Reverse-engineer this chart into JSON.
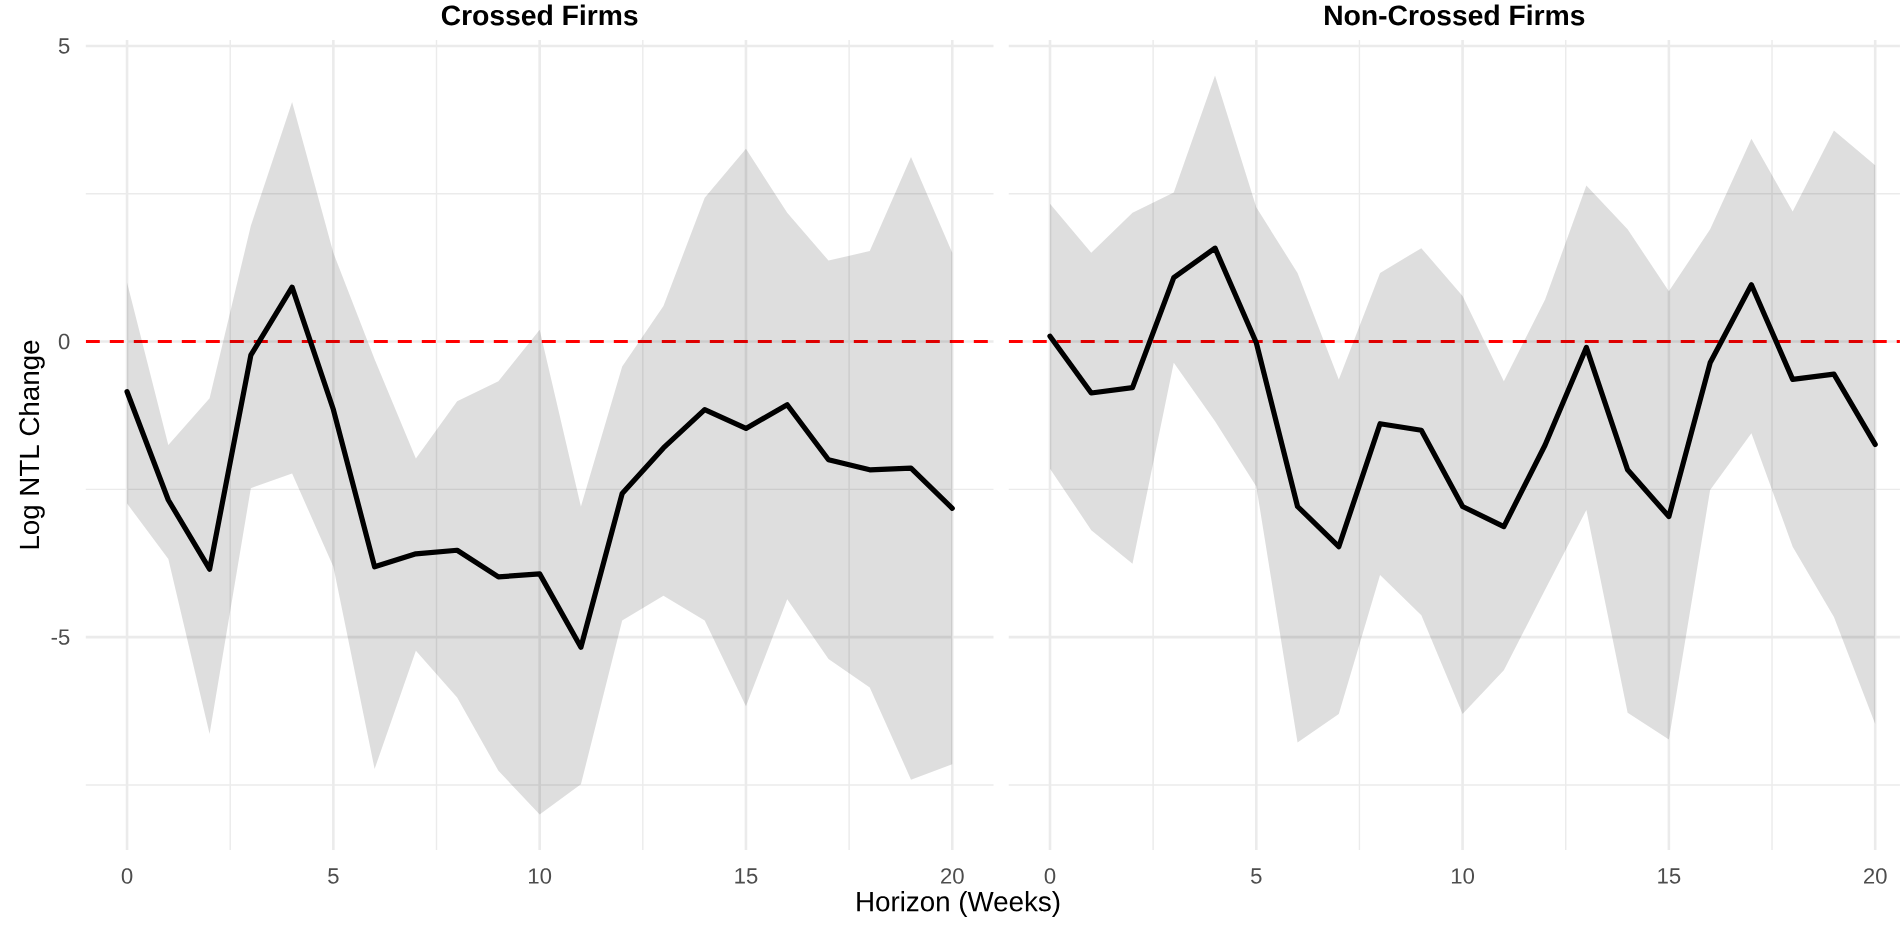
{
  "chart_data": [
    {
      "type": "line",
      "title": "Crossed Firms",
      "xlabel": "Horizon (Weeks)",
      "ylabel": "Log NTL Change",
      "x": [
        0,
        1,
        2,
        3,
        4,
        5,
        6,
        7,
        8,
        9,
        10,
        11,
        12,
        13,
        14,
        15,
        16,
        17,
        18,
        19,
        20
      ],
      "series": [
        {
          "color": "#000000",
          "values": [
            -0.85,
            -2.68,
            -3.85,
            -0.23,
            0.92,
            -1.15,
            -3.81,
            -3.59,
            -3.53,
            -3.98,
            -3.93,
            -5.17,
            -2.57,
            -1.8,
            -1.15,
            -1.47,
            -1.07,
            -2.0,
            -2.17,
            -2.14,
            -2.82
          ],
          "upper": [
            1.0,
            -1.75,
            -0.96,
            1.96,
            4.05,
            1.5,
            -0.3,
            -1.98,
            -1.01,
            -0.67,
            0.2,
            -2.79,
            -0.42,
            0.6,
            2.43,
            3.26,
            2.18,
            1.37,
            1.53,
            3.12,
            1.5
          ],
          "lower": [
            -2.74,
            -3.68,
            -6.64,
            -2.48,
            -2.23,
            -3.81,
            -7.23,
            -5.23,
            -6.02,
            -7.26,
            -8.0,
            -7.49,
            -4.72,
            -4.3,
            -4.72,
            -6.17,
            -4.36,
            -5.37,
            -5.85,
            -7.41,
            -7.15
          ]
        }
      ],
      "xlim": [
        -1,
        21
      ],
      "xticks": [
        0,
        5,
        10,
        15,
        20
      ],
      "ylim": [
        -8.6,
        5.1
      ],
      "yticks": [
        -5,
        0,
        5
      ],
      "ref_lines": [
        {
          "axis": "y",
          "value": 0,
          "color": "#ff0000",
          "line_style": "dashed"
        }
      ],
      "grid": true
    },
    {
      "type": "line",
      "title": "Non-Crossed Firms",
      "x": [
        0,
        1,
        2,
        3,
        4,
        5,
        6,
        7,
        8,
        9,
        10,
        11,
        12,
        13,
        14,
        15,
        16,
        17,
        18,
        19,
        20
      ],
      "series": [
        {
          "color": "#000000",
          "values": [
            0.09,
            -0.87,
            -0.78,
            1.08,
            1.58,
            -0.02,
            -2.79,
            -3.47,
            -1.39,
            -1.5,
            -2.79,
            -3.13,
            -1.75,
            -0.1,
            -2.17,
            -2.96,
            -0.36,
            0.96,
            -0.64,
            -0.55,
            -1.74
          ],
          "upper": [
            2.33,
            1.5,
            2.18,
            2.52,
            4.5,
            2.27,
            1.16,
            -0.64,
            1.16,
            1.58,
            0.77,
            -0.67,
            0.71,
            2.64,
            1.9,
            0.85,
            1.9,
            3.43,
            2.2,
            3.57,
            2.98
          ],
          "lower": [
            -2.15,
            -3.19,
            -3.76,
            -0.36,
            -1.35,
            -2.45,
            -6.78,
            -6.3,
            -3.95,
            -4.63,
            -6.3,
            -5.56,
            -4.2,
            -2.85,
            -6.28,
            -6.73,
            -2.51,
            -1.55,
            -3.47,
            -4.66,
            -6.47
          ]
        }
      ],
      "xlim": [
        -1,
        20.6
      ],
      "xticks": [
        0,
        5,
        10,
        15,
        20
      ],
      "ylim": [
        -8.6,
        5.1
      ],
      "yticks": [
        -5,
        0,
        5
      ],
      "ref_lines": [
        {
          "axis": "y",
          "value": 0,
          "color": "#ff0000",
          "line_style": "dashed"
        }
      ],
      "grid": true,
      "tick_labels": "x"
    }
  ]
}
